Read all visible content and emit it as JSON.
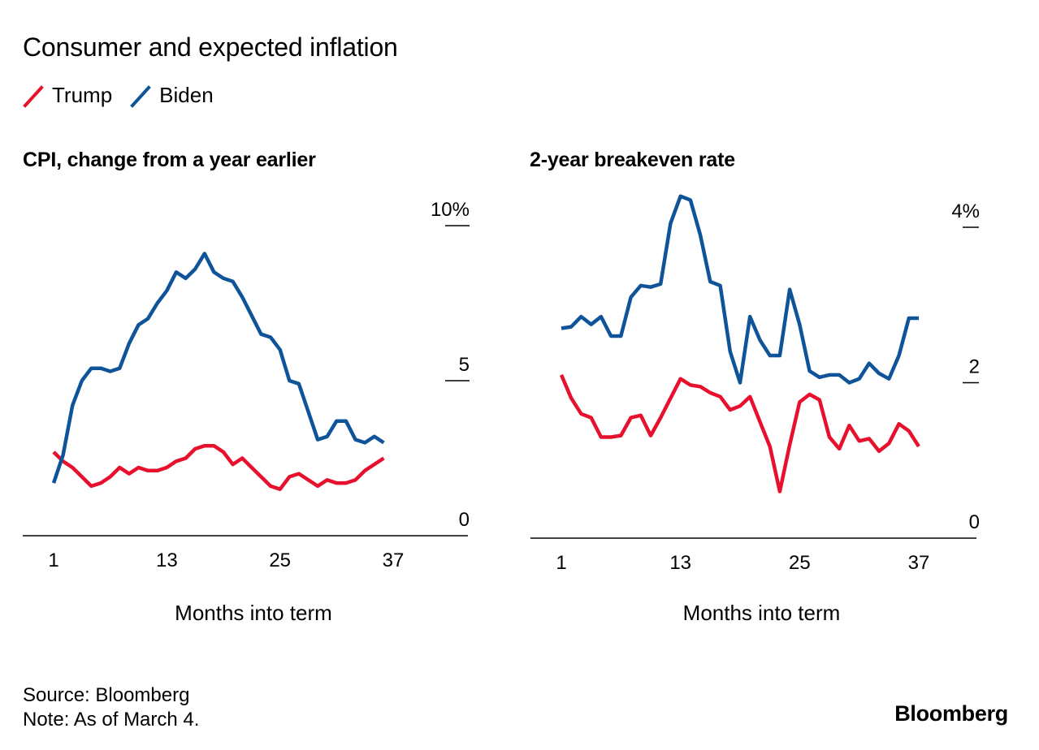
{
  "title": "Consumer and expected inflation",
  "legend": [
    {
      "name": "Trump",
      "color": "#e8112d"
    },
    {
      "name": "Biden",
      "color": "#0f5499"
    }
  ],
  "chart_data": [
    {
      "type": "line",
      "title": "CPI, change from a year earlier",
      "xlabel": "Months into term",
      "ylabel": "",
      "unit": "%",
      "xlim": [
        1,
        37
      ],
      "ylim": [
        0,
        10
      ],
      "x_ticks": [
        "1",
        "13",
        "25",
        "37"
      ],
      "y_ticks": [
        "0",
        "5",
        "10%"
      ],
      "y_tick_values": [
        0,
        5,
        10
      ],
      "series": [
        {
          "name": "Trump",
          "color": "#e8112d",
          "x": [
            1,
            2,
            3,
            4,
            5,
            6,
            7,
            8,
            9,
            10,
            11,
            12,
            13,
            14,
            15,
            16,
            17,
            18,
            19,
            20,
            21,
            22,
            23,
            24,
            25,
            26,
            27,
            28,
            29,
            30,
            31,
            32,
            33,
            34,
            35,
            36
          ],
          "values": [
            2.7,
            2.4,
            2.2,
            1.9,
            1.6,
            1.7,
            1.9,
            2.2,
            2.0,
            2.2,
            2.1,
            2.1,
            2.2,
            2.4,
            2.5,
            2.8,
            2.9,
            2.9,
            2.7,
            2.3,
            2.5,
            2.2,
            1.9,
            1.6,
            1.5,
            1.9,
            2.0,
            1.8,
            1.6,
            1.8,
            1.7,
            1.7,
            1.8,
            2.1,
            2.3,
            2.5
          ]
        },
        {
          "name": "Biden",
          "color": "#0f5499",
          "x": [
            1,
            2,
            3,
            4,
            5,
            6,
            7,
            8,
            9,
            10,
            11,
            12,
            13,
            14,
            15,
            16,
            17,
            18,
            19,
            20,
            21,
            22,
            23,
            24,
            25,
            26,
            27,
            28,
            29,
            30,
            31,
            32,
            33,
            34,
            35,
            36
          ],
          "values": [
            1.7,
            2.6,
            4.2,
            5.0,
            5.4,
            5.4,
            5.3,
            5.4,
            6.2,
            6.8,
            7.0,
            7.5,
            7.9,
            8.5,
            8.3,
            8.6,
            9.1,
            8.5,
            8.3,
            8.2,
            7.7,
            7.1,
            6.5,
            6.4,
            6.0,
            5.0,
            4.9,
            4.0,
            3.1,
            3.2,
            3.7,
            3.7,
            3.1,
            3.0,
            3.2,
            3.0
          ]
        }
      ]
    },
    {
      "type": "line",
      "title": "2-year breakeven rate",
      "xlabel": "Months into term",
      "ylabel": "",
      "unit": "%",
      "xlim": [
        1,
        37
      ],
      "ylim": [
        0,
        4
      ],
      "x_ticks": [
        "1",
        "13",
        "25",
        "37"
      ],
      "y_ticks": [
        "0",
        "2",
        "4%"
      ],
      "y_tick_values": [
        0,
        2,
        4
      ],
      "series": [
        {
          "name": "Trump",
          "color": "#e8112d",
          "x": [
            1,
            2,
            3,
            4,
            5,
            6,
            7,
            8,
            9,
            10,
            11,
            12,
            13,
            14,
            15,
            16,
            17,
            18,
            19,
            20,
            21,
            22,
            23,
            24,
            25,
            26,
            27,
            28,
            29,
            30,
            31,
            32,
            33,
            34,
            35,
            36,
            37
          ],
          "values": [
            2.1,
            1.8,
            1.6,
            1.55,
            1.3,
            1.3,
            1.32,
            1.55,
            1.58,
            1.32,
            1.55,
            1.8,
            2.05,
            1.97,
            1.95,
            1.87,
            1.82,
            1.65,
            1.7,
            1.82,
            1.5,
            1.18,
            0.6,
            1.2,
            1.75,
            1.85,
            1.78,
            1.3,
            1.15,
            1.45,
            1.25,
            1.28,
            1.12,
            1.22,
            1.47,
            1.38,
            1.18
          ]
        },
        {
          "name": "Biden",
          "color": "#0f5499",
          "x": [
            1,
            2,
            3,
            4,
            5,
            6,
            7,
            8,
            9,
            10,
            11,
            12,
            13,
            14,
            15,
            16,
            17,
            18,
            19,
            20,
            21,
            22,
            23,
            24,
            25,
            26,
            27,
            28,
            29,
            30,
            31,
            32,
            33,
            34,
            35,
            36,
            37
          ],
          "values": [
            2.7,
            2.72,
            2.85,
            2.75,
            2.85,
            2.6,
            2.6,
            3.1,
            3.25,
            3.23,
            3.27,
            4.05,
            4.4,
            4.35,
            3.9,
            3.3,
            3.25,
            2.4,
            2.0,
            2.85,
            2.55,
            2.35,
            2.35,
            3.2,
            2.75,
            2.15,
            2.07,
            2.1,
            2.1,
            2.0,
            2.05,
            2.25,
            2.12,
            2.05,
            2.35,
            2.83,
            2.83
          ]
        }
      ]
    }
  ],
  "footer": {
    "source": "Source: Bloomberg",
    "note": "Note: As of March 4."
  },
  "brand": "Bloomberg"
}
